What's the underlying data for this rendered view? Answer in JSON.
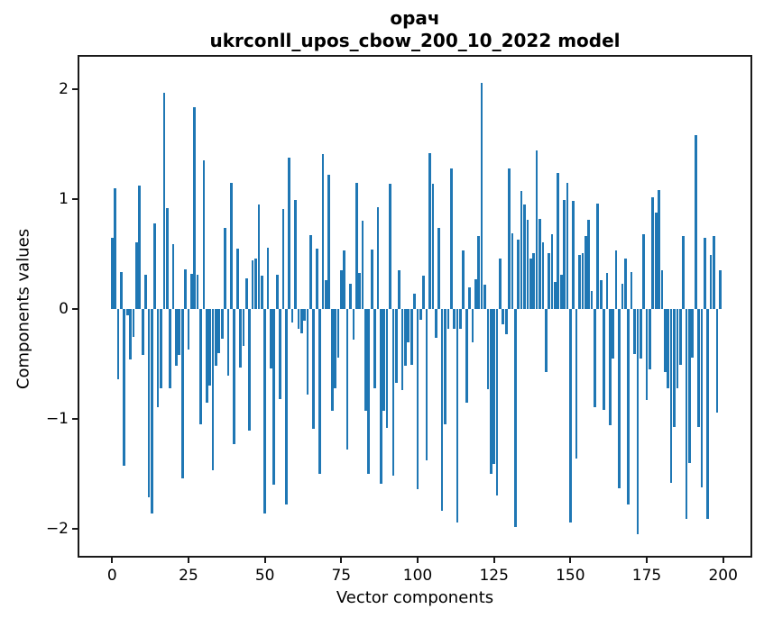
{
  "figure": {
    "background": "#ffffff",
    "text_color": "#000000",
    "spine_color": "#1a1a1a"
  },
  "chart_data": {
    "type": "bar",
    "title": "орач",
    "subtitle": "ukrconll_upos_cbow_200_10_2022 model",
    "xlabel": "Vector components",
    "ylabel": "Components values",
    "bar_color": "#1f77b4",
    "grid": false,
    "legend": "none",
    "xlim": [
      -10.7,
      209
    ],
    "ylim": [
      -2.25,
      2.3
    ],
    "x_ticks": [
      0,
      25,
      50,
      75,
      100,
      125,
      150,
      175,
      200
    ],
    "x_tick_labels": [
      "0",
      "25",
      "50",
      "75",
      "100",
      "125",
      "150",
      "175",
      "200"
    ],
    "y_ticks": [
      2,
      1,
      0,
      -1,
      -2
    ],
    "y_tick_labels": [
      "2",
      "1",
      "0",
      "−1",
      "−2"
    ],
    "values": [
      0.65,
      1.1,
      -0.64,
      0.34,
      -1.43,
      -0.06,
      -0.46,
      -0.25,
      0.61,
      1.12,
      -0.42,
      0.31,
      -1.71,
      -1.86,
      0.78,
      -0.89,
      -0.72,
      1.97,
      0.92,
      -0.72,
      0.59,
      -0.52,
      -0.42,
      -1.54,
      0.36,
      -0.37,
      0.32,
      1.84,
      0.31,
      -1.05,
      1.35,
      -0.85,
      -0.7,
      -1.47,
      -0.52,
      -0.4,
      -0.27,
      0.74,
      -0.61,
      1.15,
      -1.23,
      0.55,
      -0.53,
      -0.34,
      0.28,
      -1.11,
      0.44,
      0.46,
      0.95,
      0.3,
      -1.86,
      0.56,
      -0.54,
      -1.6,
      0.31,
      -0.82,
      0.91,
      -1.78,
      1.38,
      -0.12,
      0.99,
      -0.18,
      -0.22,
      -0.11,
      -0.78,
      0.67,
      -1.09,
      0.55,
      -1.5,
      1.41,
      0.26,
      1.22,
      -0.93,
      -0.72,
      -0.44,
      0.35,
      0.53,
      -1.28,
      0.23,
      -0.28,
      1.15,
      0.33,
      0.8,
      -0.93,
      -1.5,
      0.54,
      -0.72,
      0.93,
      -1.59,
      -0.93,
      -1.08,
      1.14,
      -1.52,
      -0.67,
      0.35,
      -0.74,
      -0.52,
      -0.3,
      -0.51,
      0.14,
      -1.64,
      -0.1,
      0.3,
      -1.38,
      1.42,
      1.14,
      -0.26,
      0.74,
      -1.84,
      -1.05,
      -0.18,
      1.28,
      -0.18,
      -1.94,
      -0.18,
      0.53,
      -0.85,
      0.2,
      -0.3,
      0.27,
      0.66,
      2.06,
      0.22,
      -0.73,
      -1.5,
      -1.41,
      -1.7,
      0.46,
      -0.14,
      -0.23,
      1.28,
      0.69,
      -1.98,
      0.63,
      1.07,
      0.95,
      0.81,
      0.46,
      0.51,
      1.44,
      0.82,
      0.61,
      -0.57,
      0.51,
      0.68,
      0.25,
      1.24,
      0.31,
      0.99,
      1.15,
      -1.94,
      0.98,
      -1.36,
      0.49,
      0.51,
      0.66,
      0.81,
      0.16,
      -0.89,
      0.96,
      0.26,
      -0.92,
      0.33,
      -1.06,
      -0.45,
      0.53,
      -1.63,
      0.23,
      0.46,
      -1.78,
      0.34,
      -0.41,
      -2.05,
      -0.45,
      0.68,
      -0.83,
      -0.55,
      1.02,
      0.88,
      1.08,
      0.35,
      -0.57,
      -0.72,
      -1.58,
      -1.07,
      -0.72,
      -0.51,
      0.66,
      -1.91,
      -1.4,
      -0.44,
      1.58,
      -1.07,
      -1.62,
      0.65,
      -1.91,
      0.49,
      0.66,
      -0.94,
      0.35
    ]
  }
}
